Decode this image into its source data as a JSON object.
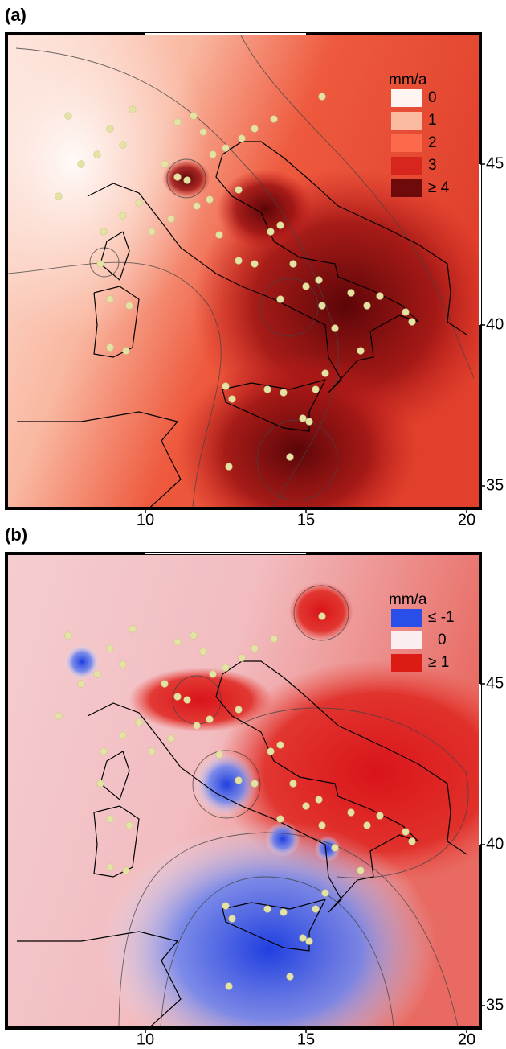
{
  "panels": [
    {
      "label": "(a)",
      "legend": {
        "title": "mm/a",
        "items": [
          {
            "label": "0",
            "color": "#fff5f0"
          },
          {
            "label": "1",
            "color": "#fcbba1"
          },
          {
            "label": "2",
            "color": "#fb6a4a"
          },
          {
            "label": "3",
            "color": "#d7261e"
          },
          {
            "label": "≥ 4",
            "color": "#6e0a0a"
          }
        ]
      },
      "xticks": [
        10,
        15,
        20
      ],
      "yticks": [
        45,
        40,
        35
      ]
    },
    {
      "label": "(b)",
      "legend": {
        "title": "mm/a",
        "items": [
          {
            "label": "≤ -1",
            "color": "#2a4ee8"
          },
          {
            "label": "0",
            "color": "#fbeef0"
          },
          {
            "label": "≥ 1",
            "color": "#dc1c14"
          }
        ]
      },
      "xticks": [
        10,
        15,
        20
      ],
      "yticks": [
        45,
        40,
        35
      ]
    }
  ]
}
